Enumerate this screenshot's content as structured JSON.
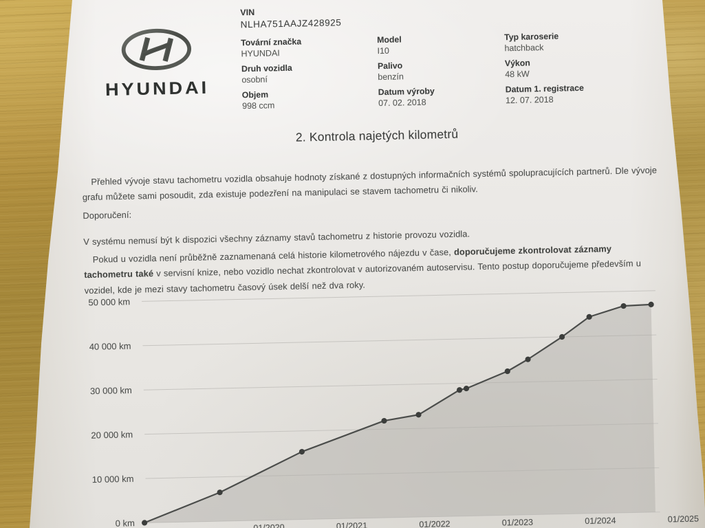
{
  "document": {
    "logo": {
      "wordmark": "HYUNDAI"
    },
    "vin": {
      "label": "VIN",
      "value": "NLHA751AAJZ428925"
    },
    "fields": [
      {
        "label": "Tovární značka",
        "value": "HYUNDAI"
      },
      {
        "label": "Model",
        "value": "I10"
      },
      {
        "label": "Typ karoserie",
        "value": "hatchback"
      },
      {
        "label": "Druh vozidla",
        "value": "osobní"
      },
      {
        "label": "Palivo",
        "value": "benzín"
      },
      {
        "label": "Výkon",
        "value": "48 kW"
      },
      {
        "label": "Objem",
        "value": "998 ccm"
      },
      {
        "label": "Datum výroby",
        "value": "07. 02. 2018"
      },
      {
        "label": "Datum 1. registrace",
        "value": "12. 07. 2018"
      }
    ],
    "section_title": "2. Kontrola najetých kilometrů",
    "intro": "Přehled vývoje stavu tachometru vozidla obsahuje hodnoty získané z dostupných informačních systémů spolupracujících partnerů. Dle vývoje grafu můžete sami posoudit, zda existuje podezření na manipulaci se stavem tachometru či nikoliv.",
    "recommendation_heading": "Doporučení:",
    "note1": "V systému nemusí být k dispozici všechny záznamy stavů tachometru z historie provozu vozidla.",
    "note2_pre": "Pokud u vozidla není průběžně zaznamenaná celá historie kilometrového nájezdu v čase, ",
    "note2_bold": "doporučujeme zkontrolovat záznamy tachometru také",
    "note2_post": " v servisní knize, nebo vozidlo nechat zkontrolovat v autorizovaném autoservisu. Tento postup doporučujeme především u vozidel, kde je mezi stavy tachometru časový úsek delší než dva roky."
  },
  "chart_data": {
    "type": "area",
    "title": "",
    "xlabel": "",
    "ylabel": "",
    "ylim": [
      0,
      50000
    ],
    "grid": true,
    "legend": "none",
    "y_ticks": [
      "0 km",
      "10 000 km",
      "20 000 km",
      "30 000 km",
      "40 000 km",
      "50 000 km"
    ],
    "x_ticks": [
      "01/2020",
      "01/2021",
      "01/2022",
      "01/2023",
      "01/2024",
      "01/2025"
    ],
    "points": [
      {
        "date": "07/2018",
        "km": 0
      },
      {
        "date": "06/2019",
        "km": 6500
      },
      {
        "date": "06/2020",
        "km": 15300
      },
      {
        "date": "06/2021",
        "km": 21900
      },
      {
        "date": "11/2021",
        "km": 23100
      },
      {
        "date": "05/2022",
        "km": 28500
      },
      {
        "date": "06/2022",
        "km": 28800
      },
      {
        "date": "12/2022",
        "km": 32500
      },
      {
        "date": "03/2023",
        "km": 35100
      },
      {
        "date": "08/2023",
        "km": 40000
      },
      {
        "date": "12/2023",
        "km": 44400
      },
      {
        "date": "05/2024",
        "km": 46700
      },
      {
        "date": "09/2024",
        "km": 46900
      }
    ],
    "colors": {
      "line": "#4b4d4b",
      "point": "#3c3e3c",
      "fill": "rgba(172,169,164,0.42)",
      "grid": "#c6c4c0",
      "tick_text": "#4c4e4c"
    }
  },
  "colors": {
    "paper": "#eae8e5",
    "wood": "#b3913f",
    "ink": "#4a4c4a",
    "label_ink": "#3a3c3b"
  }
}
